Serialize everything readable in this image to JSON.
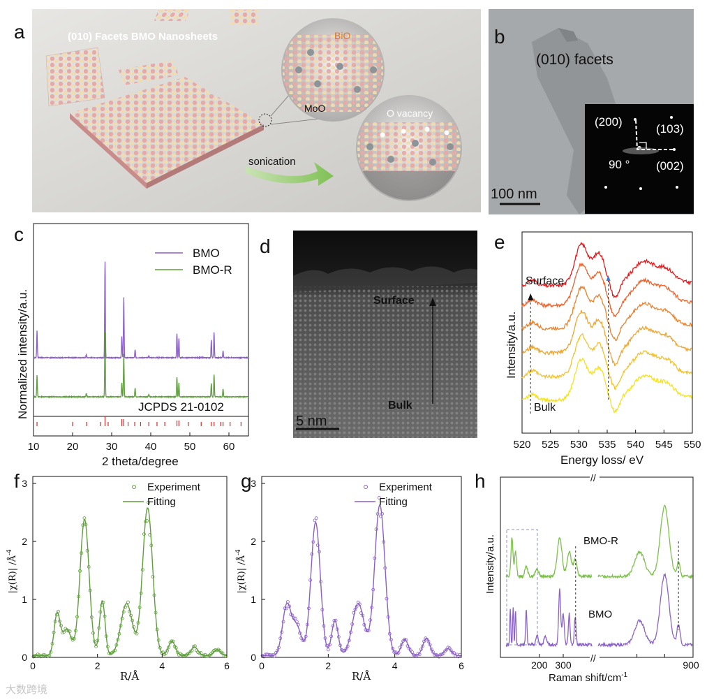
{
  "panels": {
    "a": {
      "letter": "a",
      "title": "(010) Facets BMO Nanosheets",
      "bio_label": "BiO",
      "moo_label": "MoO",
      "ovac_label": "O vacancy",
      "sonication_label": "sonication"
    },
    "b": {
      "letter": "b",
      "facets_label": "(010) facets",
      "scale_label": "100 nm",
      "saed": {
        "l200": "(200)",
        "l103": "(103)",
        "l002": "(002)",
        "angle": "90 °"
      }
    },
    "c": {
      "letter": "c",
      "reference_label": "JCPDS 21-0102"
    },
    "d": {
      "letter": "d",
      "surface_label": "Surface",
      "bulk_label": "Bulk",
      "scale_label": "5 nm"
    },
    "e": {
      "letter": "e",
      "surface_label": "Surface",
      "bulk_label": "Bulk"
    },
    "f": {
      "letter": "f"
    },
    "g": {
      "letter": "g"
    },
    "h": {
      "letter": "h",
      "bmor_label": "BMO-R",
      "bmo_label": "BMO"
    },
    "watermark": "大数跨境"
  },
  "colors": {
    "bmo": "#8B5FC7",
    "bmor": "#5E9E3C",
    "ref": "#D22B2B",
    "e_traces": [
      "#E31A1C",
      "#F0622A",
      "#E8832F",
      "#F0A530",
      "#F3C232",
      "#F6E11E"
    ],
    "h_green": "#7CC24A",
    "h_purple": "#8C63C6"
  },
  "chart_data": [
    {
      "id": "c",
      "type": "line",
      "title": "",
      "xlabel": "2 theta/degree",
      "ylabel": "Normalized intensity/a.u.",
      "xlim": [
        10,
        65
      ],
      "xticks": [
        "10",
        "20",
        "30",
        "40",
        "50",
        "60"
      ],
      "legend": [
        "BMO",
        "BMO-R"
      ],
      "legend_position": "top-right",
      "peaks": [
        {
          "x": 10.9,
          "BMO": 0.28,
          "BMO-R": 0.25
        },
        {
          "x": 23.5,
          "BMO": 0.03,
          "BMO-R": 0.04
        },
        {
          "x": 28.3,
          "BMO": 1.0,
          "BMO-R": 0.75
        },
        {
          "x": 32.6,
          "BMO": 0.22,
          "BMO-R": 0.16
        },
        {
          "x": 33.1,
          "BMO": 0.63,
          "BMO-R": 0.5
        },
        {
          "x": 36.0,
          "BMO": 0.08,
          "BMO-R": 0.1
        },
        {
          "x": 39.5,
          "BMO": 0.02,
          "BMO-R": 0.03
        },
        {
          "x": 46.7,
          "BMO": 0.25,
          "BMO-R": 0.23
        },
        {
          "x": 47.2,
          "BMO": 0.2,
          "BMO-R": 0.16
        },
        {
          "x": 55.5,
          "BMO": 0.18,
          "BMO-R": 0.16
        },
        {
          "x": 56.2,
          "BMO": 0.26,
          "BMO-R": 0.26
        },
        {
          "x": 58.5,
          "BMO": 0.07,
          "BMO-R": 0.09
        }
      ],
      "reference_lines": [
        10.9,
        20.0,
        23.6,
        27.1,
        28.3,
        29.1,
        32.6,
        33.1,
        34.2,
        35.9,
        37.4,
        39.5,
        41.6,
        43.6,
        46.7,
        47.2,
        49.6,
        52.9,
        55.5,
        56.2,
        57.9,
        58.5,
        60.3,
        63.1
      ]
    },
    {
      "id": "e",
      "type": "line",
      "xlabel": "Energy loss/ eV",
      "ylabel": "Intensity/a.u.",
      "xlim": [
        520,
        550
      ],
      "xticks": [
        "520",
        "525",
        "530",
        "535",
        "540",
        "545",
        "550"
      ],
      "traces": 6,
      "features_eV": {
        "pre_edge": 521.5,
        "main_peak": 530.5,
        "shoulder": 533.5,
        "dip": 536.0,
        "second_peak": 541.5
      }
    },
    {
      "id": "f",
      "type": "line",
      "xlabel": "R/Å",
      "ylabel": "|χ(R)| /Å",
      "ylabel_sup": "-4",
      "xlim": [
        0,
        6
      ],
      "ylim": [
        0,
        3
      ],
      "xticks": [
        "0",
        "2",
        "4",
        "6"
      ],
      "yticks": [
        "0",
        "1",
        "2",
        "3"
      ],
      "legend": [
        "Experiment",
        "Fitting"
      ],
      "peaks": [
        {
          "r": 0.75,
          "amp": 0.7,
          "w": 0.13
        },
        {
          "r": 1.05,
          "amp": 0.45,
          "w": 0.2
        },
        {
          "r": 1.6,
          "amp": 2.35,
          "w": 0.2
        },
        {
          "r": 2.15,
          "amp": 0.95,
          "w": 0.12
        },
        {
          "r": 2.9,
          "amp": 0.9,
          "w": 0.25
        },
        {
          "r": 3.55,
          "amp": 2.55,
          "w": 0.22
        },
        {
          "r": 4.3,
          "amp": 0.25,
          "w": 0.15
        },
        {
          "r": 5.0,
          "amp": 0.15,
          "w": 0.15
        },
        {
          "r": 5.7,
          "amp": 0.1,
          "w": 0.15
        }
      ]
    },
    {
      "id": "g",
      "type": "line",
      "xlabel": "R/Å",
      "ylabel": "|χ(R)| /Å",
      "ylabel_sup": "-4",
      "xlim": [
        0,
        6
      ],
      "ylim": [
        0,
        3
      ],
      "xticks": [
        "0",
        "2",
        "4",
        "6"
      ],
      "yticks": [
        "0",
        "1",
        "2",
        "3"
      ],
      "legend": [
        "Experiment",
        "Fitting"
      ],
      "peaks": [
        {
          "r": 0.75,
          "amp": 0.85,
          "w": 0.18
        },
        {
          "r": 1.05,
          "amp": 0.5,
          "w": 0.2
        },
        {
          "r": 1.62,
          "amp": 2.3,
          "w": 0.2
        },
        {
          "r": 2.2,
          "amp": 0.6,
          "w": 0.14
        },
        {
          "r": 2.9,
          "amp": 0.9,
          "w": 0.25
        },
        {
          "r": 3.55,
          "amp": 2.6,
          "w": 0.22
        },
        {
          "r": 4.3,
          "amp": 0.28,
          "w": 0.15
        },
        {
          "r": 4.95,
          "amp": 0.3,
          "w": 0.15
        },
        {
          "r": 5.6,
          "amp": 0.12,
          "w": 0.15
        }
      ]
    },
    {
      "id": "h",
      "type": "line",
      "xlabel": "Raman shift/cm",
      "xlabel_sup": "-1",
      "ylabel": "Intensity/a.u.",
      "xticks_left": [
        "200",
        "300"
      ],
      "xticks_right": [
        "900"
      ],
      "x_left_range": [
        50,
        420
      ],
      "x_right_range": [
        560,
        900
      ],
      "bands_cm": [
        85,
        100,
        145,
        190,
        225,
        285,
        325,
        350,
        710,
        800,
        850
      ]
    }
  ]
}
